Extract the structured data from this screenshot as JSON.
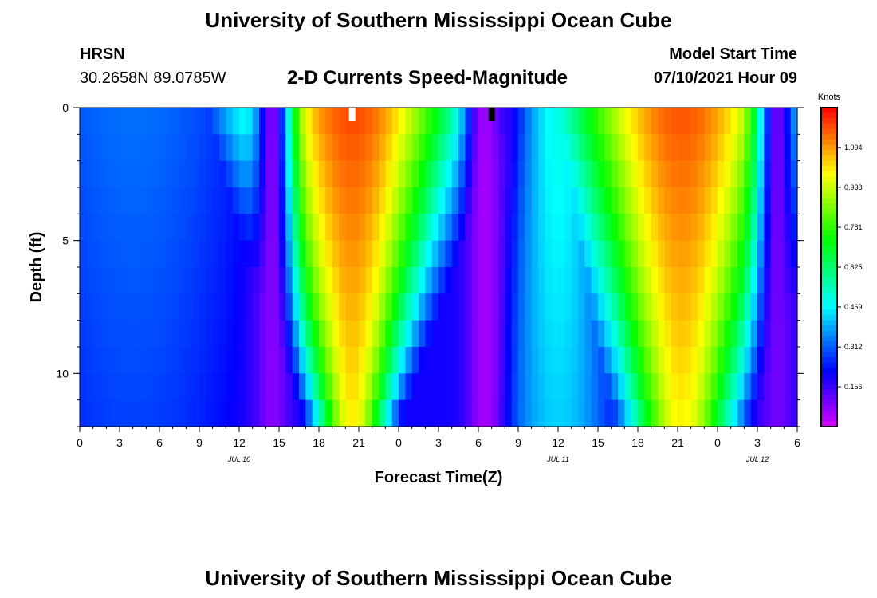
{
  "header": {
    "top_title": "University of Southern Mississippi Ocean Cube",
    "bottom_title": "University of Southern Mississippi Ocean Cube",
    "station_name": "HRSN",
    "station_coords": "30.2658N  89.0785W",
    "plot_title": "2-D Currents Speed-Magnitude",
    "model_label": "Model Start Time",
    "model_time": "07/10/2021 Hour 09"
  },
  "chart_data": {
    "type": "heatmap",
    "title": "2-D Currents Speed-Magnitude",
    "xlabel": "Forecast Time(Z)",
    "ylabel": "Depth (ft)",
    "x_range_hours": [
      0,
      54
    ],
    "y_range_ft": [
      0,
      12
    ],
    "x_tick_hours": [
      0,
      3,
      6,
      9,
      12,
      15,
      18,
      21,
      24,
      27,
      30,
      33,
      36,
      39,
      42,
      45,
      48,
      51,
      54
    ],
    "x_tick_labels": [
      "0",
      "3",
      "6",
      "9",
      "12",
      "15",
      "18",
      "21",
      "0",
      "3",
      "6",
      "9",
      "12",
      "15",
      "18",
      "21",
      "0",
      "3",
      "6"
    ],
    "y_tick_values": [
      0,
      5,
      10
    ],
    "y_tick_labels": [
      "0",
      "5",
      "10"
    ],
    "y_minor_step": 1,
    "date_labels": [
      {
        "text": "JUL 10",
        "hour": 12
      },
      {
        "text": "JUL 11",
        "hour": 36
      },
      {
        "text": "JUL 12",
        "hour": 51
      }
    ],
    "colorbar": {
      "unit": "Knots",
      "min": 0.0,
      "max": 1.25,
      "ticks": [
        0.156,
        0.312,
        0.469,
        0.625,
        0.781,
        0.938,
        1.094
      ],
      "tick_labels": [
        "0.156",
        "0.312",
        "0.469",
        "0.625",
        "0.781",
        "0.938",
        "1.094"
      ]
    },
    "markers": [
      {
        "hour": 20.5,
        "color": "#ffffff"
      },
      {
        "hour": 31.0,
        "color": "#000000"
      }
    ],
    "speed_model": {
      "surface_floor_knots": 0.2,
      "peaks": [
        {
          "center_hour": 20.5,
          "peak_knots": 1.18,
          "surface_halfwidth_hours": 6.5,
          "bottom_halfwidth_hours": 2.0
        },
        {
          "center_hour": 45.3,
          "peak_knots": 1.17,
          "surface_halfwidth_hours": 7.2,
          "bottom_halfwidth_hours": 3.0
        },
        {
          "center_hour": 4.0,
          "peak_knots": 0.33,
          "surface_halfwidth_hours": 10.0,
          "bottom_halfwidth_hours": 10.0
        },
        {
          "center_hour": 36.0,
          "peak_knots": 0.5,
          "surface_halfwidth_hours": 2.5,
          "bottom_halfwidth_hours": 4.0
        }
      ],
      "slack_minima": [
        {
          "hour": 14.5,
          "knots": 0.08
        },
        {
          "hour": 30.5,
          "knots": 0.05
        },
        {
          "hour": 52.5,
          "knots": 0.1
        }
      ]
    }
  }
}
